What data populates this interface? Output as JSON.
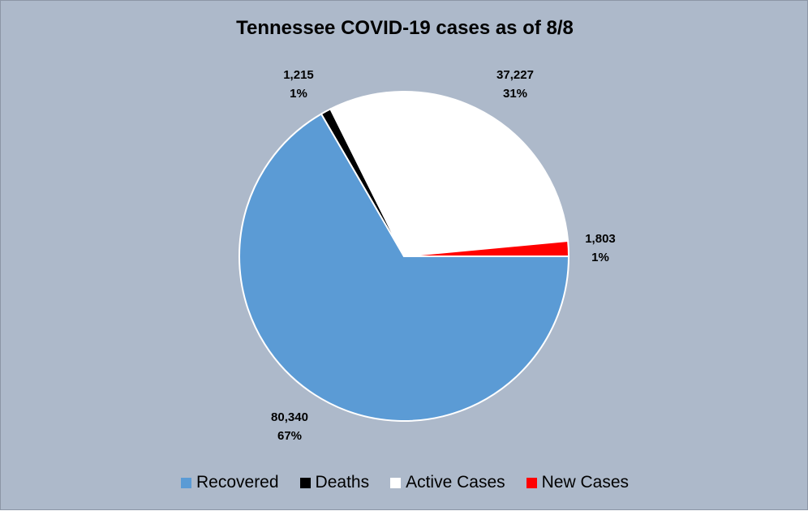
{
  "chart_data": {
    "type": "pie",
    "title": "Tennessee COVID-19 cases as of 8/8",
    "categories": [
      "Recovered",
      "Deaths",
      "Active Cases",
      "New Cases"
    ],
    "values": [
      80340,
      1215,
      37227,
      1803
    ],
    "value_labels": [
      "80,340",
      "1,215",
      "37,227",
      "1,803"
    ],
    "percent_labels": [
      "67%",
      "1%",
      "31%",
      "1%"
    ],
    "colors": [
      "#5b9bd5",
      "#000000",
      "#ffffff",
      "#ff0000"
    ],
    "legend_position": "bottom"
  }
}
